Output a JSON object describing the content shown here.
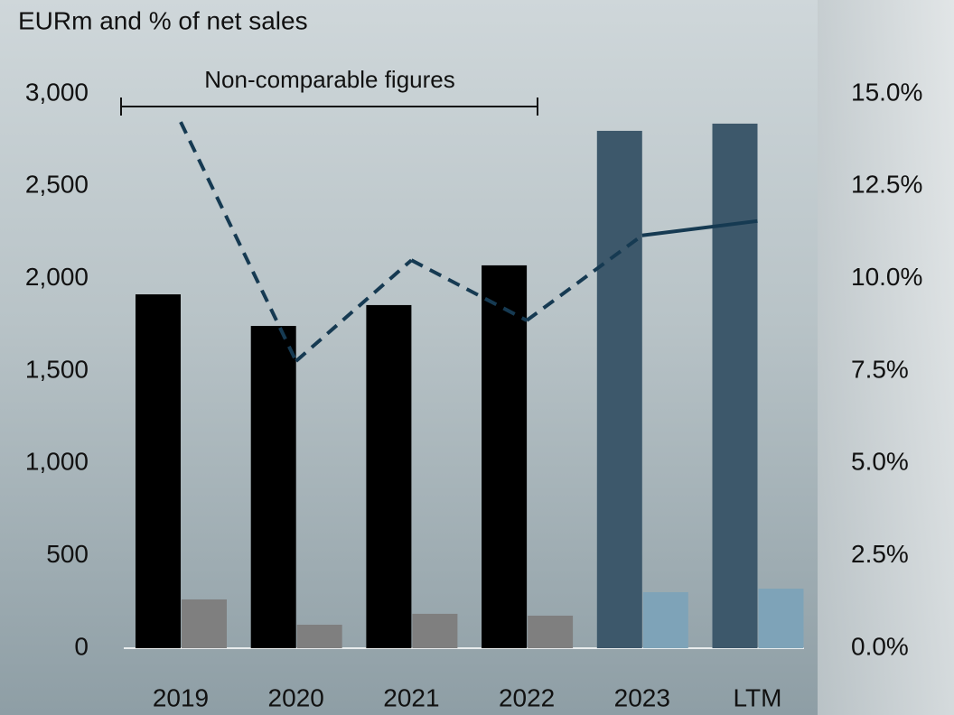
{
  "chart_data": {
    "type": "bar",
    "title": "EURm and % of net sales",
    "annotation": "Non-comparable figures",
    "categories": [
      "2019",
      "2020",
      "2021",
      "2022",
      "2023",
      "LTM"
    ],
    "series": [
      {
        "colors": [
          "#000000",
          "#000000",
          "#000000",
          "#000000",
          "#3d586b",
          "#3d586b"
        ],
        "values": [
          1915,
          1744,
          1857,
          2072,
          2800,
          2839
        ]
      },
      {
        "colors": [
          "#7f7f7f",
          "#7f7f7f",
          "#7f7f7f",
          "#7f7f7f",
          "#7ea3b8",
          "#7ea3b8"
        ],
        "values": [
          264,
          127,
          186,
          176,
          303,
          322
        ]
      },
      {
        "type": "line",
        "axis": "y2",
        "color": "#163a52",
        "values": [
          14.24,
          7.77,
          10.5,
          8.87,
          11.17,
          11.56
        ],
        "segment_styles": [
          "dashed",
          "dashed",
          "dashed",
          "dashed",
          "solid"
        ]
      }
    ],
    "ylim": [
      0,
      3000
    ],
    "yticks": [
      0,
      500,
      {
        "value": 1000,
        "label": "1,000"
      },
      {
        "value": 1500,
        "label": "1,500"
      },
      {
        "value": 2000,
        "label": "2,000"
      },
      {
        "value": 2500,
        "label": "2,500"
      },
      {
        "value": 3000,
        "label": "3,000"
      }
    ],
    "y2lim": [
      0,
      15
    ],
    "y2ticks": [
      {
        "value": 0,
        "label": "0.0%"
      },
      {
        "value": 2.5,
        "label": "2.5%"
      },
      {
        "value": 5,
        "label": "5.0%"
      },
      {
        "value": 7.5,
        "label": "7.5%"
      },
      {
        "value": 10,
        "label": "10.0%"
      },
      {
        "value": 12.5,
        "label": "12.5%"
      },
      {
        "value": 15,
        "label": "15.0%"
      }
    ]
  }
}
